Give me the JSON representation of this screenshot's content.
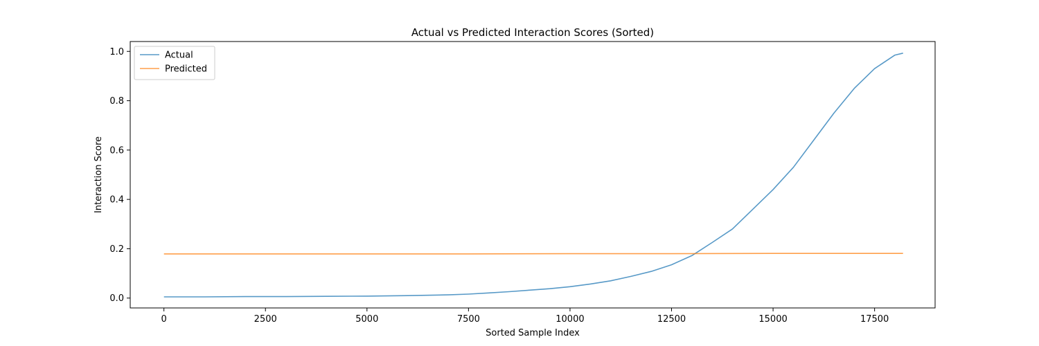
{
  "chart_data": {
    "type": "line",
    "title": "Actual vs Predicted Interaction Scores (Sorted)",
    "xlabel": "Sorted Sample Index",
    "ylabel": "Interaction Score",
    "xlim": [
      -830,
      18990
    ],
    "ylim": [
      -0.04,
      1.04
    ],
    "xticks": [
      0,
      2500,
      5000,
      7500,
      10000,
      12500,
      15000,
      17500
    ],
    "yticks": [
      0.0,
      0.2,
      0.4,
      0.6,
      0.8,
      1.0
    ],
    "ytick_format": 1,
    "grid": false,
    "legend": {
      "position": "top-left"
    },
    "series": [
      {
        "name": "Actual",
        "color": "#1f77b4",
        "x": [
          0,
          1000,
          2000,
          3000,
          4000,
          5000,
          6000,
          7000,
          7500,
          8000,
          8500,
          9000,
          9500,
          10000,
          10500,
          11000,
          11500,
          12000,
          12500,
          13000,
          13500,
          14000,
          14500,
          15000,
          15500,
          16000,
          16500,
          17000,
          17500,
          18000,
          18200
        ],
        "y": [
          0.005,
          0.005,
          0.006,
          0.006,
          0.007,
          0.008,
          0.01,
          0.013,
          0.016,
          0.021,
          0.026,
          0.032,
          0.038,
          0.046,
          0.057,
          0.07,
          0.088,
          0.108,
          0.135,
          0.172,
          0.225,
          0.28,
          0.36,
          0.44,
          0.53,
          0.64,
          0.75,
          0.85,
          0.93,
          0.985,
          0.993
        ]
      },
      {
        "name": "Predicted",
        "color": "#ff7f0e",
        "x": [
          0,
          2500,
          5000,
          7500,
          10000,
          12500,
          15000,
          17500,
          18200
        ],
        "y": [
          0.179,
          0.179,
          0.179,
          0.179,
          0.18,
          0.18,
          0.181,
          0.181,
          0.181
        ]
      }
    ]
  }
}
